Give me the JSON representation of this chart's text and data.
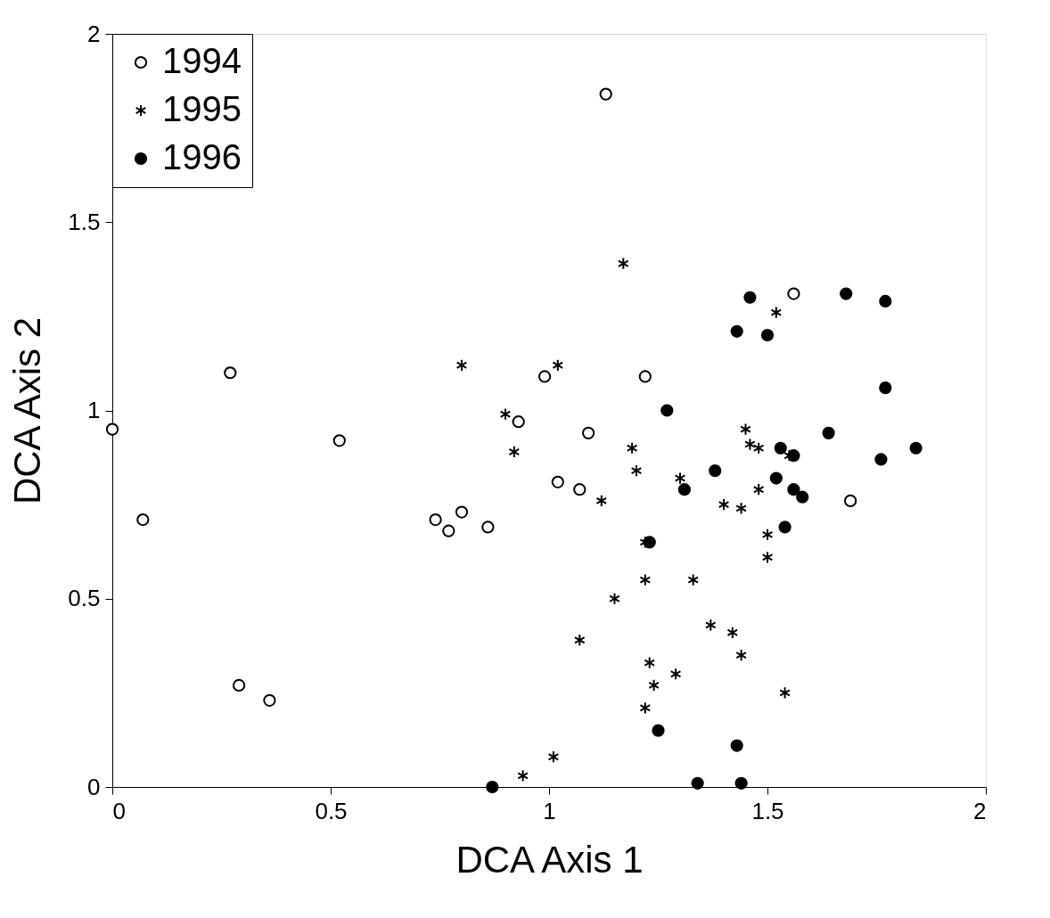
{
  "chart_data": {
    "type": "scatter",
    "xlabel": "DCA Axis 1",
    "ylabel": "DCA Axis 2",
    "xlim": [
      0,
      2
    ],
    "ylim": [
      0,
      2
    ],
    "xticks": [
      0,
      0.5,
      1,
      1.5,
      2
    ],
    "yticks": [
      0,
      0.5,
      1,
      1.5,
      2
    ],
    "grid": false,
    "legend": "top left",
    "series": [
      {
        "name": "1994",
        "color": "#ffffff",
        "marker": "circle",
        "x": [
          0.0,
          0.07,
          0.27,
          0.29,
          0.36,
          0.52,
          0.74,
          0.77,
          0.8,
          0.86,
          0.93,
          0.99,
          1.13,
          1.02,
          1.07,
          1.09,
          1.22,
          1.56,
          1.69
        ],
        "values": [
          0.95,
          0.71,
          1.1,
          0.27,
          0.23,
          0.92,
          0.71,
          0.68,
          0.73,
          0.69,
          0.97,
          1.09,
          1.84,
          0.81,
          0.79,
          0.94,
          1.09,
          1.31,
          0.76
        ]
      },
      {
        "name": "1995",
        "color": "#000000",
        "marker": "cross",
        "x": [
          1.45,
          1.46,
          1.48,
          1.55,
          1.19,
          1.2,
          1.3,
          1.12,
          1.4,
          1.44,
          1.48,
          1.22,
          1.5,
          1.5,
          1.33,
          1.22,
          1.15,
          1.37,
          1.42,
          1.07,
          1.44,
          1.23,
          1.29,
          1.24,
          1.54,
          1.22,
          1.01,
          1.17,
          1.52,
          1.02,
          0.8,
          0.9,
          0.92,
          0.94
        ],
        "values": [
          0.95,
          0.91,
          0.9,
          0.88,
          0.9,
          0.84,
          0.82,
          0.76,
          0.75,
          0.74,
          0.79,
          0.65,
          0.67,
          0.61,
          0.55,
          0.55,
          0.5,
          0.43,
          0.41,
          0.39,
          0.35,
          0.33,
          0.3,
          0.27,
          0.25,
          0.21,
          0.08,
          1.39,
          1.26,
          1.12,
          1.12,
          0.99,
          0.89,
          0.03
        ]
      },
      {
        "name": "1996",
        "color": "#000000",
        "marker": "circle",
        "x": [
          1.27,
          1.64,
          1.84,
          1.76,
          1.53,
          1.56,
          1.38,
          1.52,
          1.31,
          1.56,
          1.58,
          1.54,
          1.23,
          1.25,
          1.43,
          1.34,
          1.44,
          0.87,
          1.46,
          1.68,
          1.77,
          1.43,
          1.5,
          1.77
        ],
        "values": [
          1.0,
          0.94,
          0.9,
          0.87,
          0.9,
          0.88,
          0.84,
          0.82,
          0.79,
          0.79,
          0.77,
          0.69,
          0.65,
          0.15,
          0.11,
          0.01,
          0.01,
          0.0,
          1.3,
          1.31,
          1.29,
          1.21,
          1.2,
          1.06
        ]
      }
    ]
  }
}
